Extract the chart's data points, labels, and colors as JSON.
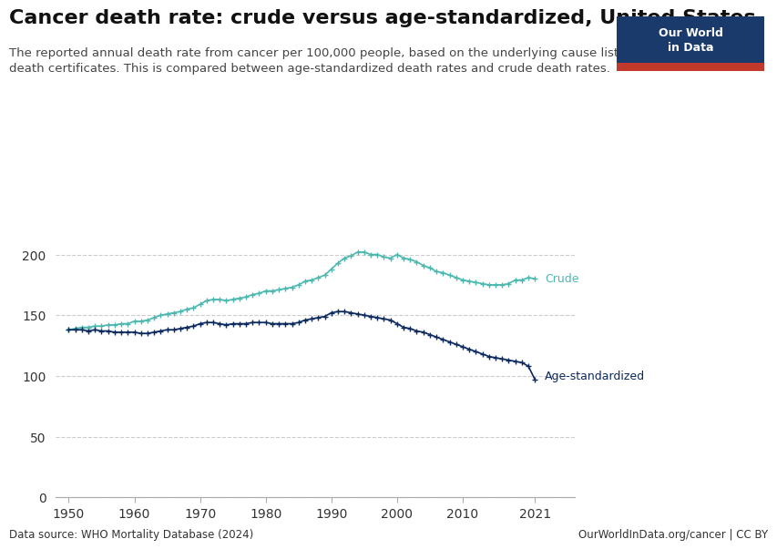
{
  "title": "Cancer death rate: crude versus age-standardized, United States",
  "subtitle": "The reported annual death rate from cancer per 100,000 people, based on the underlying cause listed on\ndeath certificates. This is compared between age-standardized death rates and crude death rates.",
  "source_left": "Data source: WHO Mortality Database (2024)",
  "source_right": "OurWorldInData.org/cancer | CC BY",
  "ylim": [
    0,
    225
  ],
  "yticks": [
    0,
    50,
    100,
    150,
    200
  ],
  "xlim": [
    1948,
    2027
  ],
  "crude_color": "#4db8b0",
  "age_std_color": "#0d2a5e",
  "crude_label": "Crude",
  "age_std_label": "Age-standardized",
  "years": [
    1950,
    1951,
    1952,
    1953,
    1954,
    1955,
    1956,
    1957,
    1958,
    1959,
    1960,
    1961,
    1962,
    1963,
    1964,
    1965,
    1966,
    1967,
    1968,
    1969,
    1970,
    1971,
    1972,
    1973,
    1974,
    1975,
    1976,
    1977,
    1978,
    1979,
    1980,
    1981,
    1982,
    1983,
    1984,
    1985,
    1986,
    1987,
    1988,
    1989,
    1990,
    1991,
    1992,
    1993,
    1994,
    1995,
    1996,
    1997,
    1998,
    1999,
    2000,
    2001,
    2002,
    2003,
    2004,
    2005,
    2006,
    2007,
    2008,
    2009,
    2010,
    2011,
    2012,
    2013,
    2014,
    2015,
    2016,
    2017,
    2018,
    2019,
    2020,
    2021
  ],
  "crude": [
    138,
    139,
    140,
    140,
    141,
    141,
    142,
    142,
    143,
    143,
    145,
    145,
    146,
    148,
    150,
    151,
    152,
    153,
    155,
    156,
    159,
    162,
    163,
    163,
    162,
    163,
    164,
    165,
    167,
    168,
    170,
    170,
    171,
    172,
    173,
    175,
    178,
    179,
    181,
    183,
    188,
    193,
    197,
    199,
    202,
    202,
    200,
    200,
    198,
    197,
    200,
    197,
    196,
    194,
    191,
    189,
    186,
    185,
    183,
    181,
    179,
    178,
    177,
    176,
    175,
    175,
    175,
    176,
    179,
    179,
    181,
    180
  ],
  "age_std": [
    138,
    138,
    138,
    137,
    138,
    137,
    137,
    136,
    136,
    136,
    136,
    135,
    135,
    136,
    137,
    138,
    138,
    139,
    140,
    141,
    143,
    144,
    144,
    143,
    142,
    143,
    143,
    143,
    144,
    144,
    144,
    143,
    143,
    143,
    143,
    144,
    146,
    147,
    148,
    149,
    152,
    153,
    153,
    152,
    151,
    150,
    149,
    148,
    147,
    146,
    143,
    140,
    139,
    137,
    136,
    134,
    132,
    130,
    128,
    126,
    124,
    122,
    120,
    118,
    116,
    115,
    114,
    113,
    112,
    111,
    108,
    97
  ],
  "owid_box_color": "#1a3a6b",
  "owid_box_red": "#c0392b",
  "title_fontsize": 16,
  "subtitle_fontsize": 9.5,
  "tick_fontsize": 10,
  "label_fontsize": 9,
  "source_fontsize": 8.5
}
